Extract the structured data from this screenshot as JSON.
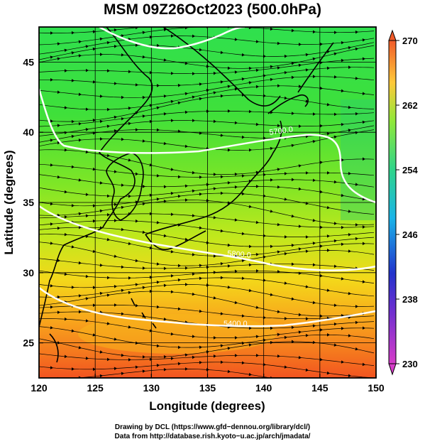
{
  "title": "MSM 09Z26Oct2023 (500.0hPa)",
  "xaxis": {
    "label": "Longitude (degrees)",
    "ticks": [
      "120",
      "125",
      "130",
      "135",
      "140",
      "145",
      "150"
    ],
    "values": [
      120,
      125,
      130,
      135,
      140,
      145,
      150
    ],
    "range": [
      120,
      150
    ]
  },
  "yaxis": {
    "label": "Latitude  (degrees)",
    "ticks": [
      "25",
      "30",
      "35",
      "40",
      "45"
    ],
    "values": [
      25,
      30,
      35,
      40,
      45
    ],
    "range": [
      22.5,
      47.5
    ]
  },
  "colorbar": {
    "ticks": [
      "230",
      "238",
      "246",
      "254",
      "262",
      "270"
    ],
    "values": [
      230,
      238,
      246,
      254,
      262,
      270
    ],
    "range": [
      230,
      270
    ],
    "colors": [
      "#d63cc8",
      "#2233cc",
      "#1ab4e8",
      "#2fd48a",
      "#8fe83a",
      "#ffc93a",
      "#f05a28"
    ]
  },
  "contours": [
    {
      "label": "5400.0",
      "value": 5400.0
    },
    {
      "label": "5700.0",
      "value": 5700.0
    },
    {
      "label": "5800.0",
      "value": 5800.0
    }
  ],
  "footer": {
    "line1": "Drawing by DCL (https://www.gfd−dennou.org/library/dcl/)",
    "line2": "Data from http://database.rish.kyoto−u.ac.jp/arch/jmadata/"
  }
}
